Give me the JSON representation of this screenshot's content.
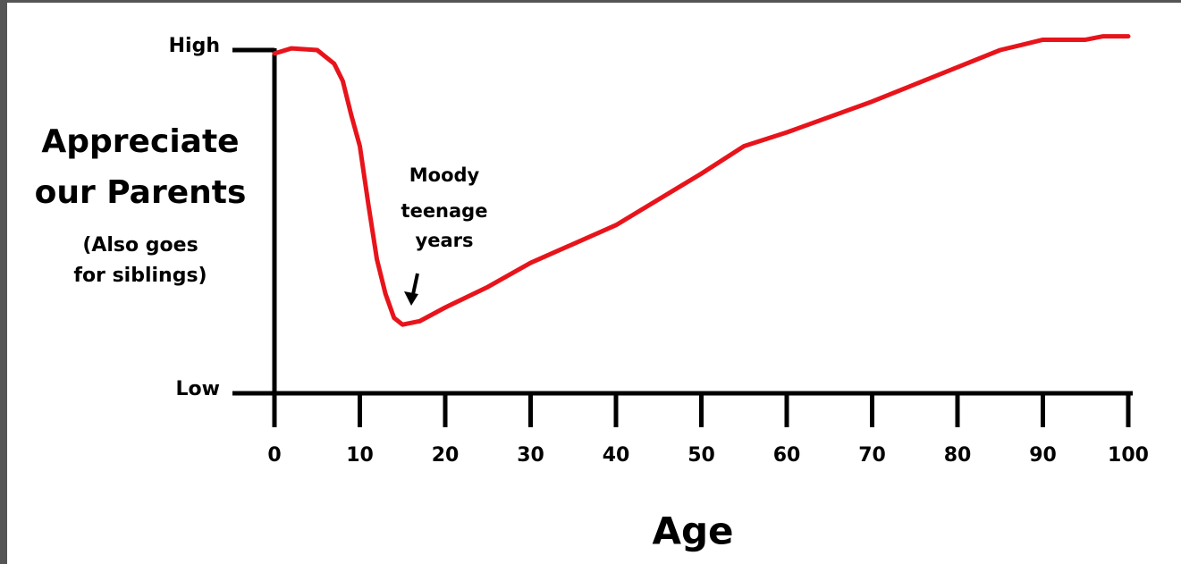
{
  "chart_data": {
    "type": "line",
    "ylabel": [
      "Appreciate",
      "our Parents"
    ],
    "ylabel_note": [
      "(Also goes",
      "for siblings)"
    ],
    "xlabel": "Age",
    "annotation": [
      "Moody",
      "teenage",
      "years"
    ],
    "x": [
      0,
      2,
      5,
      7,
      8,
      9,
      10,
      11,
      12,
      13,
      14,
      15,
      17,
      20,
      25,
      30,
      40,
      50,
      55,
      60,
      70,
      80,
      85,
      90,
      95,
      97,
      100
    ],
    "series": [
      {
        "color": "#e8141b",
        "values": [
          99,
          100.5,
          100,
          96,
          91,
          81,
          72,
          55,
          39,
          29,
          22,
          20,
          21,
          25,
          31,
          38,
          49,
          64,
          72,
          76,
          85,
          95,
          100,
          103,
          103,
          104,
          104
        ]
      }
    ],
    "xlim": [
      0,
      100
    ],
    "xticks": [
      0,
      10,
      20,
      30,
      40,
      50,
      60,
      70,
      80,
      90,
      100
    ],
    "ylim": [
      0,
      100
    ],
    "yticks": [
      {
        "value": 0,
        "label": "Low"
      },
      {
        "value": 100,
        "label": "High"
      }
    ]
  }
}
